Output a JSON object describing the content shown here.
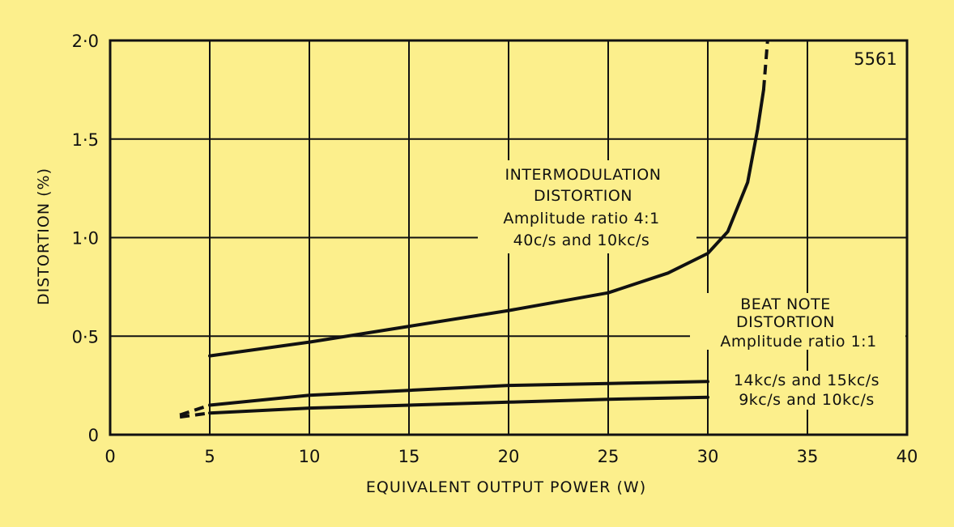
{
  "chart_data": {
    "type": "line",
    "title": "",
    "figure_number": "5561",
    "xlabel": "EQUIVALENT OUTPUT POWER (W)",
    "ylabel": "DISTORTION (%)",
    "xlim": [
      0,
      40
    ],
    "ylim": [
      0,
      2.0
    ],
    "x_ticks": [
      0,
      5,
      10,
      15,
      20,
      25,
      30,
      35,
      40
    ],
    "x_tick_labels": [
      "0",
      "5",
      "10",
      "15",
      "20",
      "25",
      "30",
      "35",
      "40"
    ],
    "y_ticks": [
      0,
      0.5,
      1.0,
      1.5,
      2.0
    ],
    "y_tick_labels": [
      "0",
      "0·5",
      "1·0",
      "1·5",
      "2·0"
    ],
    "grid": true,
    "series": [
      {
        "label_lines": [
          "INTERMODULATION",
          "DISTORTION",
          "Amplitude ratio 4:1",
          "40c/s and 10kc/s"
        ],
        "x": [
          5,
          10,
          15,
          20,
          25,
          28,
          30,
          31,
          32,
          32.5,
          32.8
        ],
        "y": [
          0.4,
          0.47,
          0.55,
          0.63,
          0.72,
          0.82,
          0.92,
          1.03,
          1.28,
          1.55,
          1.75
        ],
        "dashed_x": [
          32.8,
          33.0
        ],
        "dashed_y": [
          1.75,
          2.0
        ]
      },
      {
        "label_lines": [
          "14kc/s and 15kc/s"
        ],
        "x": [
          5,
          10,
          15,
          20,
          25,
          30
        ],
        "y": [
          0.15,
          0.2,
          0.225,
          0.25,
          0.26,
          0.27
        ],
        "dashed_x": [
          3.5,
          5
        ],
        "dashed_y": [
          0.1,
          0.15
        ]
      },
      {
        "label_lines": [
          "9kc/s and 10kc/s"
        ],
        "x": [
          5,
          10,
          15,
          20,
          25,
          30
        ],
        "y": [
          0.11,
          0.135,
          0.15,
          0.165,
          0.18,
          0.19
        ],
        "dashed_x": [
          3.5,
          5
        ],
        "dashed_y": [
          0.09,
          0.11
        ]
      }
    ],
    "group_label_lines": [
      "BEAT NOTE",
      "DISTORTION",
      "Amplitude ratio 1:1"
    ]
  }
}
